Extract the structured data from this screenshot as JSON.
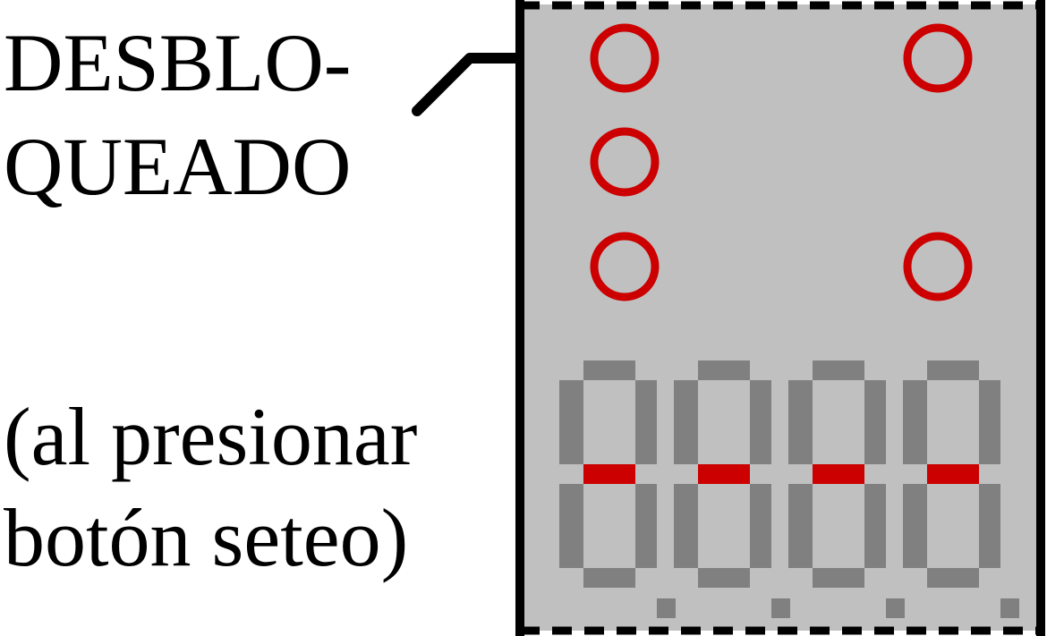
{
  "labels": {
    "unlocked_line1": "DESBLO-",
    "unlocked_line2": "QUEADO",
    "note_line1": "(al presionar",
    "note_line2": "botón seteo)"
  },
  "panel": {
    "background": "#c0c0c0",
    "border_color": "#000000"
  },
  "indicators": {
    "color": "#cc0000",
    "lit": [
      false,
      false,
      false,
      false,
      false
    ]
  },
  "display": {
    "digit_count": 4,
    "text": "----",
    "segment_off_color": "#808080",
    "segment_on_color": "#cc0000",
    "decimal_points_lit": [
      false,
      false,
      false,
      false
    ]
  }
}
